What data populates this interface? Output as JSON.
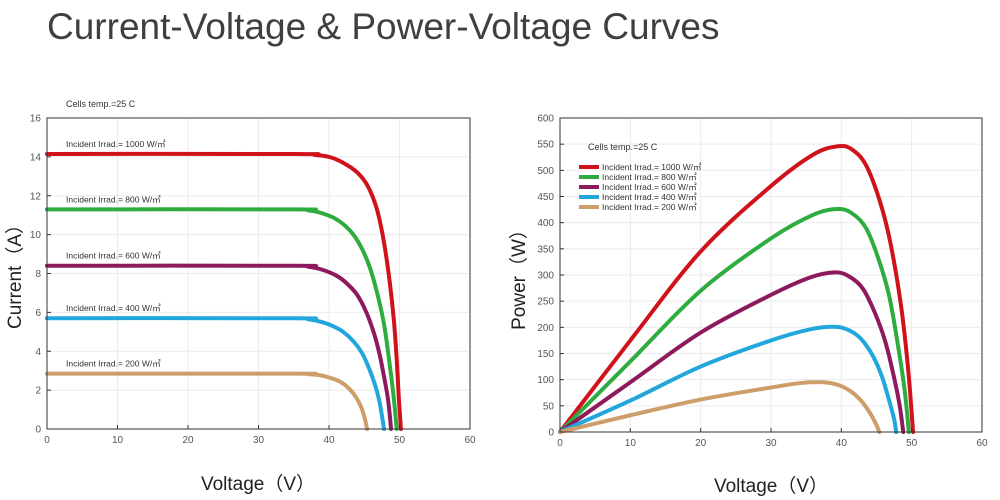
{
  "title": "Current-Voltage & Power-Voltage Curves",
  "colors": {
    "s1000": "#d0121b",
    "s800": "#2fac3f",
    "s600": "#8e1a5e",
    "s400": "#22a7dc",
    "s200": "#cd9e69",
    "axis": "#333333",
    "grid": "#ebebeb"
  },
  "chart_data": [
    {
      "type": "line",
      "title": "",
      "annotation": "Cells temp.=25 C",
      "xlabel": "Voltage（V）",
      "ylabel": "Current（A）",
      "xlim": [
        0,
        60
      ],
      "ylim": [
        0,
        16
      ],
      "xticks": [
        "0",
        "10",
        "20",
        "30",
        "40",
        "50",
        "60"
      ],
      "yticks": [
        "0",
        "2",
        "4",
        "6",
        "8",
        "10",
        "12",
        "14",
        "16"
      ],
      "series": [
        {
          "name": "Incident Irrad.= 1000 W/㎡",
          "color_key": "s1000",
          "x": [
            0,
            35,
            38,
            40,
            42,
            44,
            45.5,
            46.8,
            47.8,
            48.6,
            49.2,
            49.6,
            49.9,
            50.2
          ],
          "y": [
            14.15,
            14.15,
            14.1,
            14.0,
            13.7,
            13.2,
            12.5,
            11.3,
            9.6,
            7.6,
            5.6,
            3.6,
            1.6,
            0
          ]
        },
        {
          "name": "Incident Irrad.= 800 W/㎡",
          "color_key": "s800",
          "x": [
            0,
            35,
            37,
            39,
            41,
            43,
            44.5,
            45.8,
            46.9,
            47.8,
            48.4,
            48.9,
            49.3,
            49.6
          ],
          "y": [
            11.3,
            11.3,
            11.25,
            11.1,
            10.8,
            10.2,
            9.4,
            8.3,
            6.9,
            5.4,
            3.9,
            2.5,
            1.2,
            0
          ]
        },
        {
          "name": "Incident Irrad.= 600 W/㎡",
          "color_key": "s600",
          "x": [
            0,
            35,
            37,
            39,
            41,
            42.5,
            44,
            45.3,
            46.4,
            47.2,
            47.8,
            48.3,
            48.6,
            48.8
          ],
          "y": [
            8.4,
            8.4,
            8.35,
            8.2,
            7.9,
            7.5,
            6.9,
            6.0,
            4.9,
            3.8,
            2.7,
            1.7,
            0.8,
            0
          ]
        },
        {
          "name": "Incident Irrad.= 400 W/㎡",
          "color_key": "s400",
          "x": [
            0,
            35,
            37,
            39,
            40.5,
            42,
            43.5,
            44.7,
            45.7,
            46.5,
            47.1,
            47.5,
            47.8
          ],
          "y": [
            5.7,
            5.7,
            5.65,
            5.5,
            5.3,
            5.0,
            4.5,
            3.9,
            3.1,
            2.3,
            1.5,
            0.7,
            0
          ]
        },
        {
          "name": "Incident Irrad.= 200 W/㎡",
          "color_key": "s200",
          "x": [
            0,
            35,
            37,
            38.5,
            40,
            41.5,
            42.8,
            43.8,
            44.6,
            45.1,
            45.4
          ],
          "y": [
            2.85,
            2.85,
            2.82,
            2.78,
            2.65,
            2.45,
            2.1,
            1.65,
            1.1,
            0.5,
            0
          ]
        }
      ]
    },
    {
      "type": "line",
      "title": "",
      "annotation": "Cells temp.=25 C",
      "xlabel": "Voltage（V）",
      "ylabel": "Power（W）",
      "xlim": [
        0,
        60
      ],
      "ylim": [
        0,
        600
      ],
      "xticks": [
        "0",
        "10",
        "20",
        "30",
        "40",
        "50",
        "60"
      ],
      "yticks": [
        "0",
        "50",
        "100",
        "150",
        "200",
        "250",
        "300",
        "350",
        "400",
        "450",
        "500",
        "550",
        "600"
      ],
      "legend": "top-left",
      "series": [
        {
          "name": "Incident Irrad.= 1000 W/㎡",
          "color_key": "s1000",
          "x": [
            0,
            10,
            20,
            30,
            36,
            39.5,
            41.5,
            43.5,
            45.5,
            47,
            48.5,
            49.5,
            50.2
          ],
          "y": [
            0,
            175,
            345,
            470,
            530,
            546,
            540,
            510,
            440,
            360,
            240,
            120,
            0
          ]
        },
        {
          "name": "Incident Irrad.= 800 W/㎡",
          "color_key": "s800",
          "x": [
            0,
            10,
            20,
            30,
            36,
            39.5,
            41.5,
            43.5,
            45.3,
            46.8,
            48,
            49,
            49.6
          ],
          "y": [
            0,
            135,
            270,
            370,
            415,
            426,
            418,
            390,
            330,
            260,
            170,
            80,
            0
          ]
        },
        {
          "name": "Incident Irrad.= 600 W/㎡",
          "color_key": "s600",
          "x": [
            0,
            10,
            20,
            30,
            35.5,
            39,
            41,
            43,
            44.7,
            46.2,
            47.4,
            48.3,
            48.8
          ],
          "y": [
            0,
            95,
            190,
            262,
            295,
            305,
            298,
            275,
            230,
            175,
            110,
            50,
            0
          ]
        },
        {
          "name": "Incident Irrad.= 400 W/㎡",
          "color_key": "s400",
          "x": [
            0,
            10,
            20,
            30,
            35.5,
            39,
            41,
            42.8,
            44.5,
            45.8,
            46.8,
            47.5,
            47.8
          ],
          "y": [
            0,
            60,
            125,
            175,
            196,
            201,
            195,
            178,
            145,
            105,
            60,
            25,
            0
          ]
        },
        {
          "name": "Incident Irrad.= 200 W/㎡",
          "color_key": "s200",
          "x": [
            0,
            10,
            20,
            30,
            34.5,
            37.5,
            39.5,
            41.3,
            42.8,
            44,
            44.9,
            45.4
          ],
          "y": [
            0,
            32,
            62,
            85,
            94,
            95,
            90,
            78,
            60,
            38,
            16,
            0
          ]
        }
      ]
    }
  ]
}
